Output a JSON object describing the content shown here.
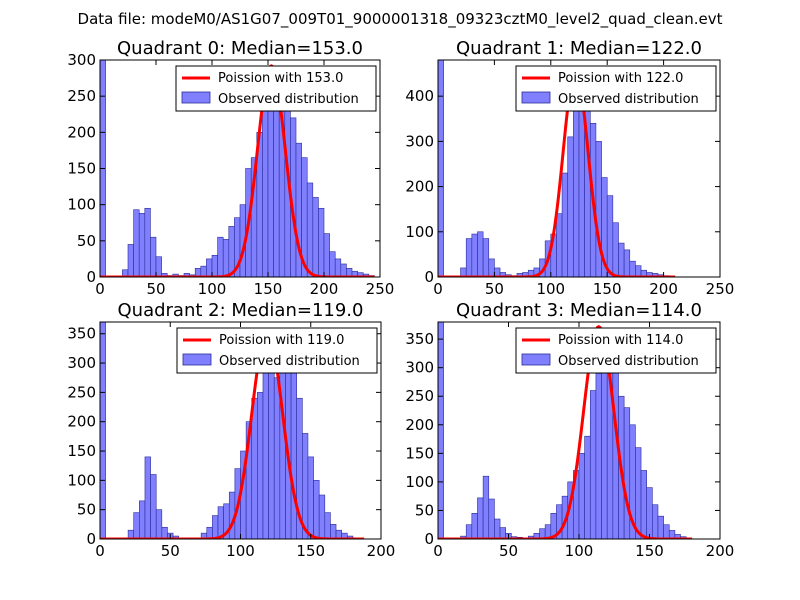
{
  "figure": {
    "title": "Data file: modeM0/AS1G07_009T01_9000001318_09323cztM0_level2_quad_clean.evt",
    "colors": {
      "bar_fill": "#8080ff",
      "bar_edge": "#2a2a9a",
      "poisson_line": "#ff0000",
      "axis": "#000000"
    }
  },
  "chart_data": [
    {
      "type": "bar",
      "title": "Quadrant 0: Median=153.0",
      "xlim": [
        0,
        250
      ],
      "ylim": [
        0,
        300
      ],
      "xticks": [
        0,
        50,
        100,
        150,
        200,
        250
      ],
      "yticks": [
        0,
        50,
        100,
        150,
        200,
        250,
        300
      ],
      "legend": {
        "placement": "top-right",
        "line_label": "Poission with 153.0",
        "bar_label": "Observed distribution"
      },
      "bar_width": 5,
      "bars": [
        [
          0,
          300
        ],
        [
          20,
          10
        ],
        [
          25,
          45
        ],
        [
          30,
          93
        ],
        [
          35,
          88
        ],
        [
          40,
          95
        ],
        [
          45,
          55
        ],
        [
          50,
          28
        ],
        [
          55,
          5
        ],
        [
          60,
          2
        ],
        [
          65,
          4
        ],
        [
          70,
          2
        ],
        [
          75,
          5
        ],
        [
          80,
          3
        ],
        [
          85,
          12
        ],
        [
          90,
          15
        ],
        [
          95,
          25
        ],
        [
          100,
          30
        ],
        [
          105,
          55
        ],
        [
          110,
          52
        ],
        [
          115,
          70
        ],
        [
          120,
          82
        ],
        [
          125,
          100
        ],
        [
          130,
          150
        ],
        [
          135,
          165
        ],
        [
          140,
          200
        ],
        [
          145,
          245
        ],
        [
          150,
          265
        ],
        [
          155,
          240
        ],
        [
          160,
          275
        ],
        [
          165,
          270
        ],
        [
          170,
          220
        ],
        [
          175,
          185
        ],
        [
          180,
          165
        ],
        [
          185,
          130
        ],
        [
          190,
          110
        ],
        [
          195,
          95
        ],
        [
          200,
          60
        ],
        [
          205,
          35
        ],
        [
          210,
          25
        ],
        [
          215,
          18
        ],
        [
          220,
          12
        ],
        [
          225,
          8
        ],
        [
          230,
          6
        ],
        [
          235,
          4
        ],
        [
          240,
          2
        ]
      ],
      "poisson": {
        "mean": 153.0,
        "peak": 292,
        "x_range": [
          0,
          245
        ]
      }
    },
    {
      "type": "bar",
      "title": "Quadrant 1: Median=122.0",
      "xlim": [
        0,
        250
      ],
      "ylim": [
        0,
        480
      ],
      "xticks": [
        0,
        50,
        100,
        150,
        200,
        250
      ],
      "yticks": [
        0,
        100,
        200,
        300,
        400
      ],
      "legend": {
        "placement": "top-right",
        "line_label": "Poission with 122.0",
        "bar_label": "Observed distribution"
      },
      "bar_width": 5,
      "bars": [
        [
          0,
          480
        ],
        [
          20,
          20
        ],
        [
          25,
          85
        ],
        [
          30,
          95
        ],
        [
          35,
          100
        ],
        [
          40,
          85
        ],
        [
          45,
          40
        ],
        [
          50,
          20
        ],
        [
          55,
          10
        ],
        [
          60,
          5
        ],
        [
          65,
          3
        ],
        [
          70,
          8
        ],
        [
          75,
          10
        ],
        [
          80,
          15
        ],
        [
          85,
          20
        ],
        [
          90,
          40
        ],
        [
          95,
          80
        ],
        [
          100,
          95
        ],
        [
          105,
          140
        ],
        [
          110,
          230
        ],
        [
          115,
          310
        ],
        [
          120,
          370
        ],
        [
          125,
          445
        ],
        [
          130,
          390
        ],
        [
          135,
          340
        ],
        [
          140,
          300
        ],
        [
          145,
          220
        ],
        [
          150,
          180
        ],
        [
          155,
          120
        ],
        [
          160,
          75
        ],
        [
          165,
          60
        ],
        [
          170,
          35
        ],
        [
          175,
          25
        ],
        [
          180,
          15
        ],
        [
          185,
          10
        ],
        [
          190,
          8
        ],
        [
          195,
          5
        ],
        [
          200,
          3
        ],
        [
          205,
          2
        ]
      ],
      "poisson": {
        "mean": 122.0,
        "peak": 457,
        "x_range": [
          0,
          210
        ]
      }
    },
    {
      "type": "bar",
      "title": "Quadrant 2: Median=119.0",
      "xlim": [
        0,
        200
      ],
      "ylim": [
        0,
        370
      ],
      "xticks": [
        0,
        50,
        100,
        150,
        200
      ],
      "yticks": [
        0,
        50,
        100,
        150,
        200,
        250,
        300,
        350
      ],
      "legend": {
        "placement": "top-right",
        "line_label": "Poission with 119.0",
        "bar_label": "Observed distribution"
      },
      "bar_width": 4,
      "bars": [
        [
          0,
          370
        ],
        [
          20,
          15
        ],
        [
          24,
          45
        ],
        [
          28,
          65
        ],
        [
          32,
          140
        ],
        [
          36,
          110
        ],
        [
          40,
          50
        ],
        [
          44,
          20
        ],
        [
          48,
          10
        ],
        [
          52,
          5
        ],
        [
          56,
          2
        ],
        [
          60,
          2
        ],
        [
          72,
          10
        ],
        [
          76,
          20
        ],
        [
          80,
          40
        ],
        [
          84,
          55
        ],
        [
          88,
          60
        ],
        [
          92,
          80
        ],
        [
          96,
          120
        ],
        [
          100,
          150
        ],
        [
          104,
          200
        ],
        [
          108,
          240
        ],
        [
          112,
          250
        ],
        [
          116,
          285
        ],
        [
          120,
          290
        ],
        [
          124,
          275
        ],
        [
          128,
          310
        ],
        [
          132,
          285
        ],
        [
          136,
          320
        ],
        [
          140,
          240
        ],
        [
          144,
          180
        ],
        [
          148,
          140
        ],
        [
          152,
          100
        ],
        [
          156,
          75
        ],
        [
          160,
          45
        ],
        [
          164,
          25
        ],
        [
          168,
          15
        ],
        [
          172,
          10
        ],
        [
          176,
          5
        ],
        [
          180,
          2
        ]
      ],
      "poisson": {
        "mean": 119.0,
        "peak": 355,
        "x_range": [
          0,
          188
        ]
      }
    },
    {
      "type": "bar",
      "title": "Quadrant 3: Median=114.0",
      "xlim": [
        0,
        200
      ],
      "ylim": [
        0,
        380
      ],
      "xticks": [
        0,
        50,
        100,
        150,
        200
      ],
      "yticks": [
        0,
        50,
        100,
        150,
        200,
        250,
        300,
        350
      ],
      "legend": {
        "placement": "top-right",
        "line_label": "Poission with 114.0",
        "bar_label": "Observed distribution"
      },
      "bar_width": 4,
      "bars": [
        [
          0,
          380
        ],
        [
          16,
          5
        ],
        [
          20,
          25
        ],
        [
          24,
          45
        ],
        [
          28,
          72
        ],
        [
          32,
          110
        ],
        [
          36,
          70
        ],
        [
          40,
          35
        ],
        [
          44,
          20
        ],
        [
          48,
          10
        ],
        [
          52,
          4
        ],
        [
          56,
          3
        ],
        [
          60,
          2
        ],
        [
          64,
          5
        ],
        [
          68,
          10
        ],
        [
          72,
          18
        ],
        [
          76,
          25
        ],
        [
          80,
          45
        ],
        [
          84,
          60
        ],
        [
          88,
          75
        ],
        [
          92,
          100
        ],
        [
          96,
          120
        ],
        [
          100,
          150
        ],
        [
          104,
          180
        ],
        [
          108,
          260
        ],
        [
          112,
          290
        ],
        [
          116,
          360
        ],
        [
          120,
          350
        ],
        [
          124,
          330
        ],
        [
          128,
          250
        ],
        [
          132,
          230
        ],
        [
          136,
          200
        ],
        [
          140,
          160
        ],
        [
          144,
          120
        ],
        [
          148,
          90
        ],
        [
          152,
          60
        ],
        [
          156,
          40
        ],
        [
          160,
          25
        ],
        [
          164,
          15
        ],
        [
          168,
          8
        ],
        [
          172,
          4
        ],
        [
          176,
          2
        ]
      ],
      "poisson": {
        "mean": 114.0,
        "peak": 372,
        "x_range": [
          0,
          180
        ]
      }
    }
  ]
}
